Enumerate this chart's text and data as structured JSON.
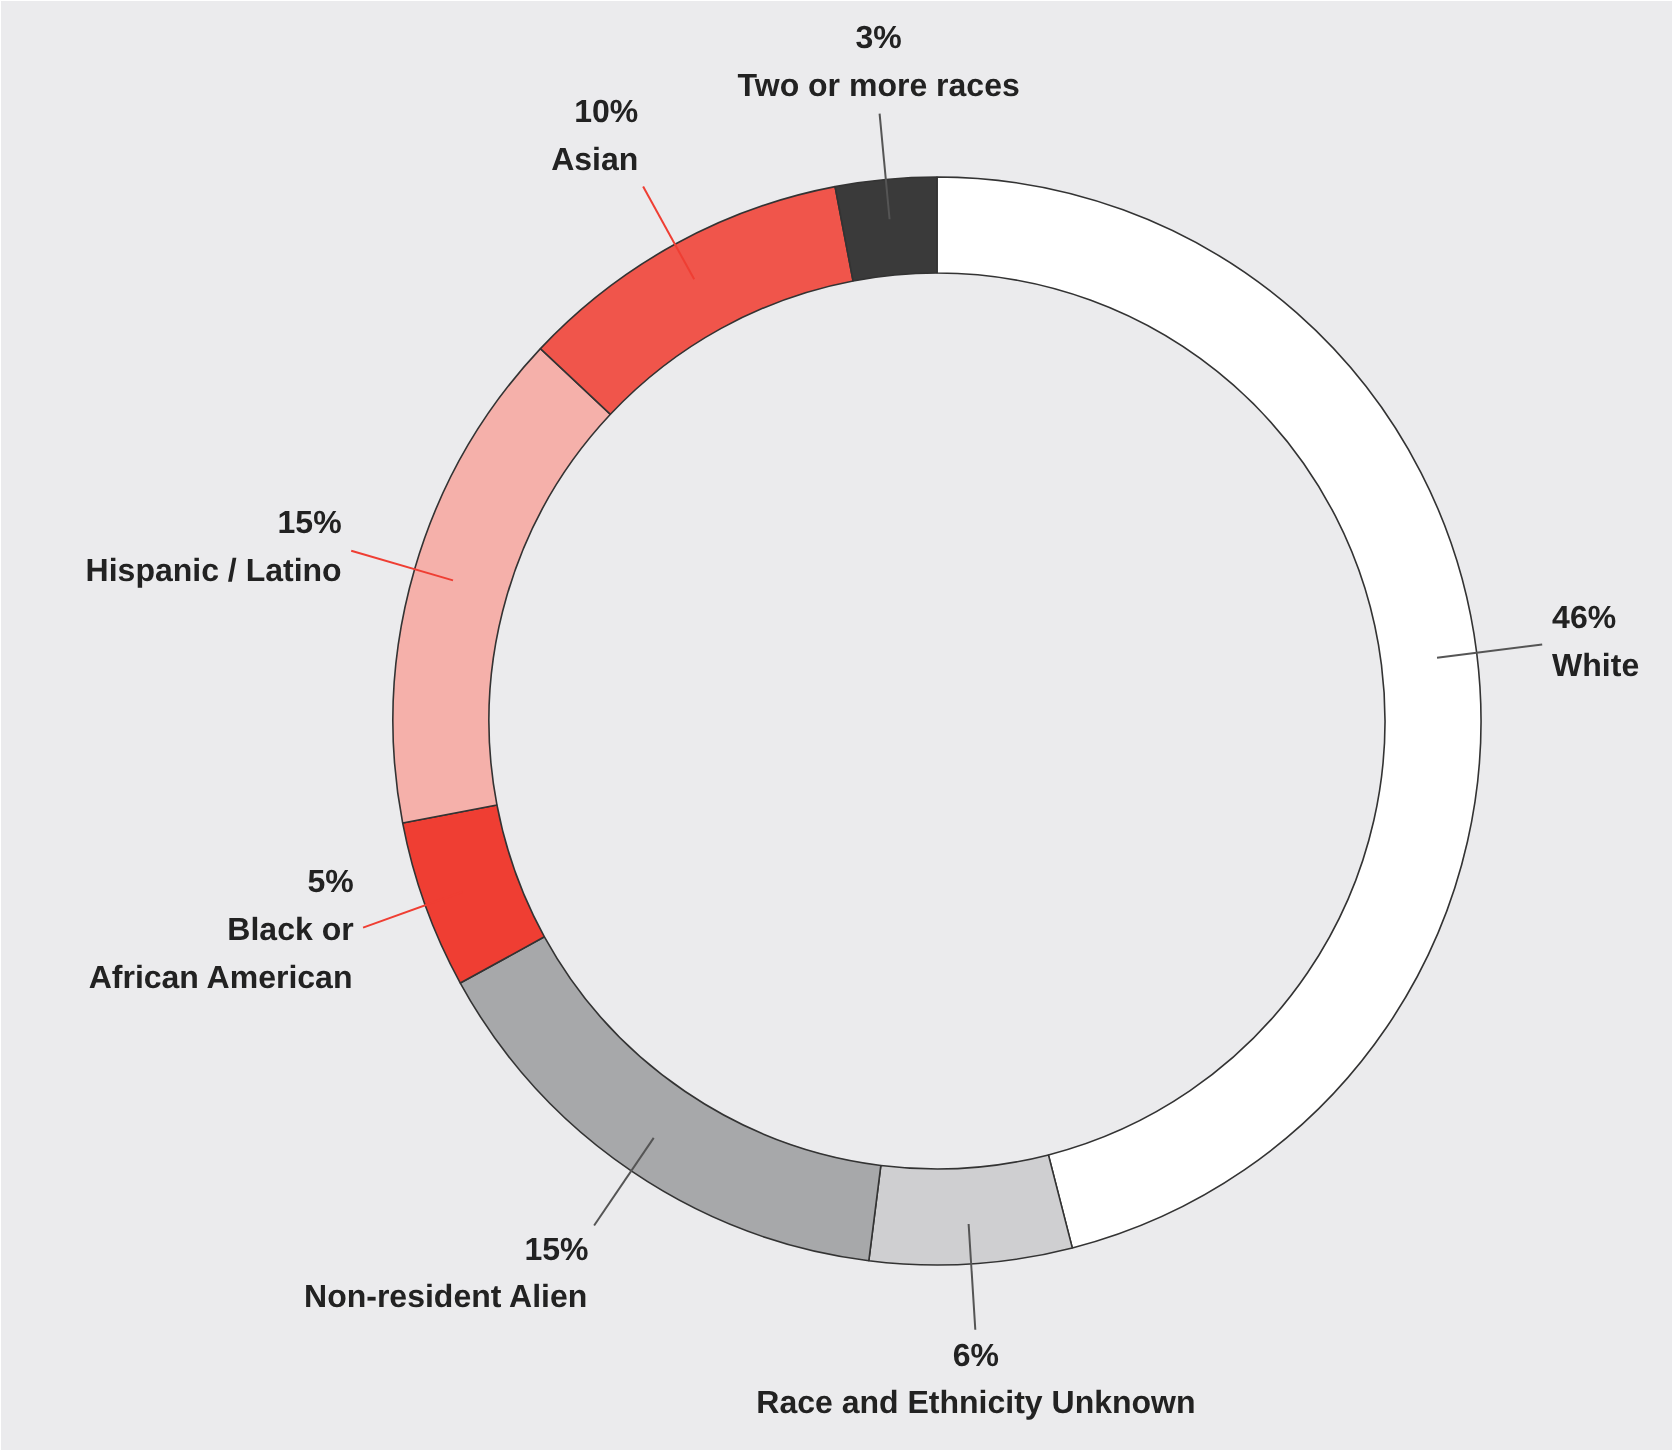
{
  "chart_data": {
    "type": "donut",
    "categories": [
      "White",
      "Race and Ethnicity Unknown",
      "Non-resident Alien",
      "Black or\nAfrican American",
      "Hispanic / Latino",
      "Asian",
      "Two or more races"
    ],
    "values": [
      46,
      6,
      15,
      5,
      15,
      10,
      3
    ],
    "value_labels": [
      "46%",
      "6%",
      "15%",
      "5%",
      "15%",
      "10%",
      "3%"
    ],
    "colors": [
      "#ffffff",
      "#cfcfd1",
      "#a7a8aa",
      "#ef3e33",
      "#f5b0aa",
      "#f0554b",
      "#3a3a3a"
    ]
  }
}
